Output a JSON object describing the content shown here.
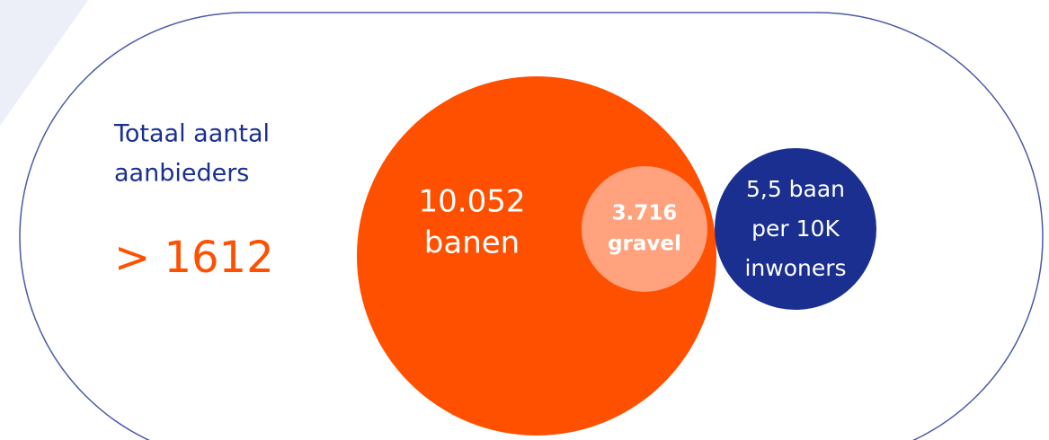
{
  "heading": {
    "lines": [
      "Totaal aantal",
      "aanbieders"
    ]
  },
  "total": "> 1612",
  "main_circle": {
    "lines": [
      "10.052",
      "banen"
    ]
  },
  "inner_circle": {
    "lines": [
      "3.716",
      "gravel"
    ]
  },
  "side_circle": {
    "lines": [
      "5,5 baan",
      "per 10K",
      "inwoners"
    ]
  }
}
